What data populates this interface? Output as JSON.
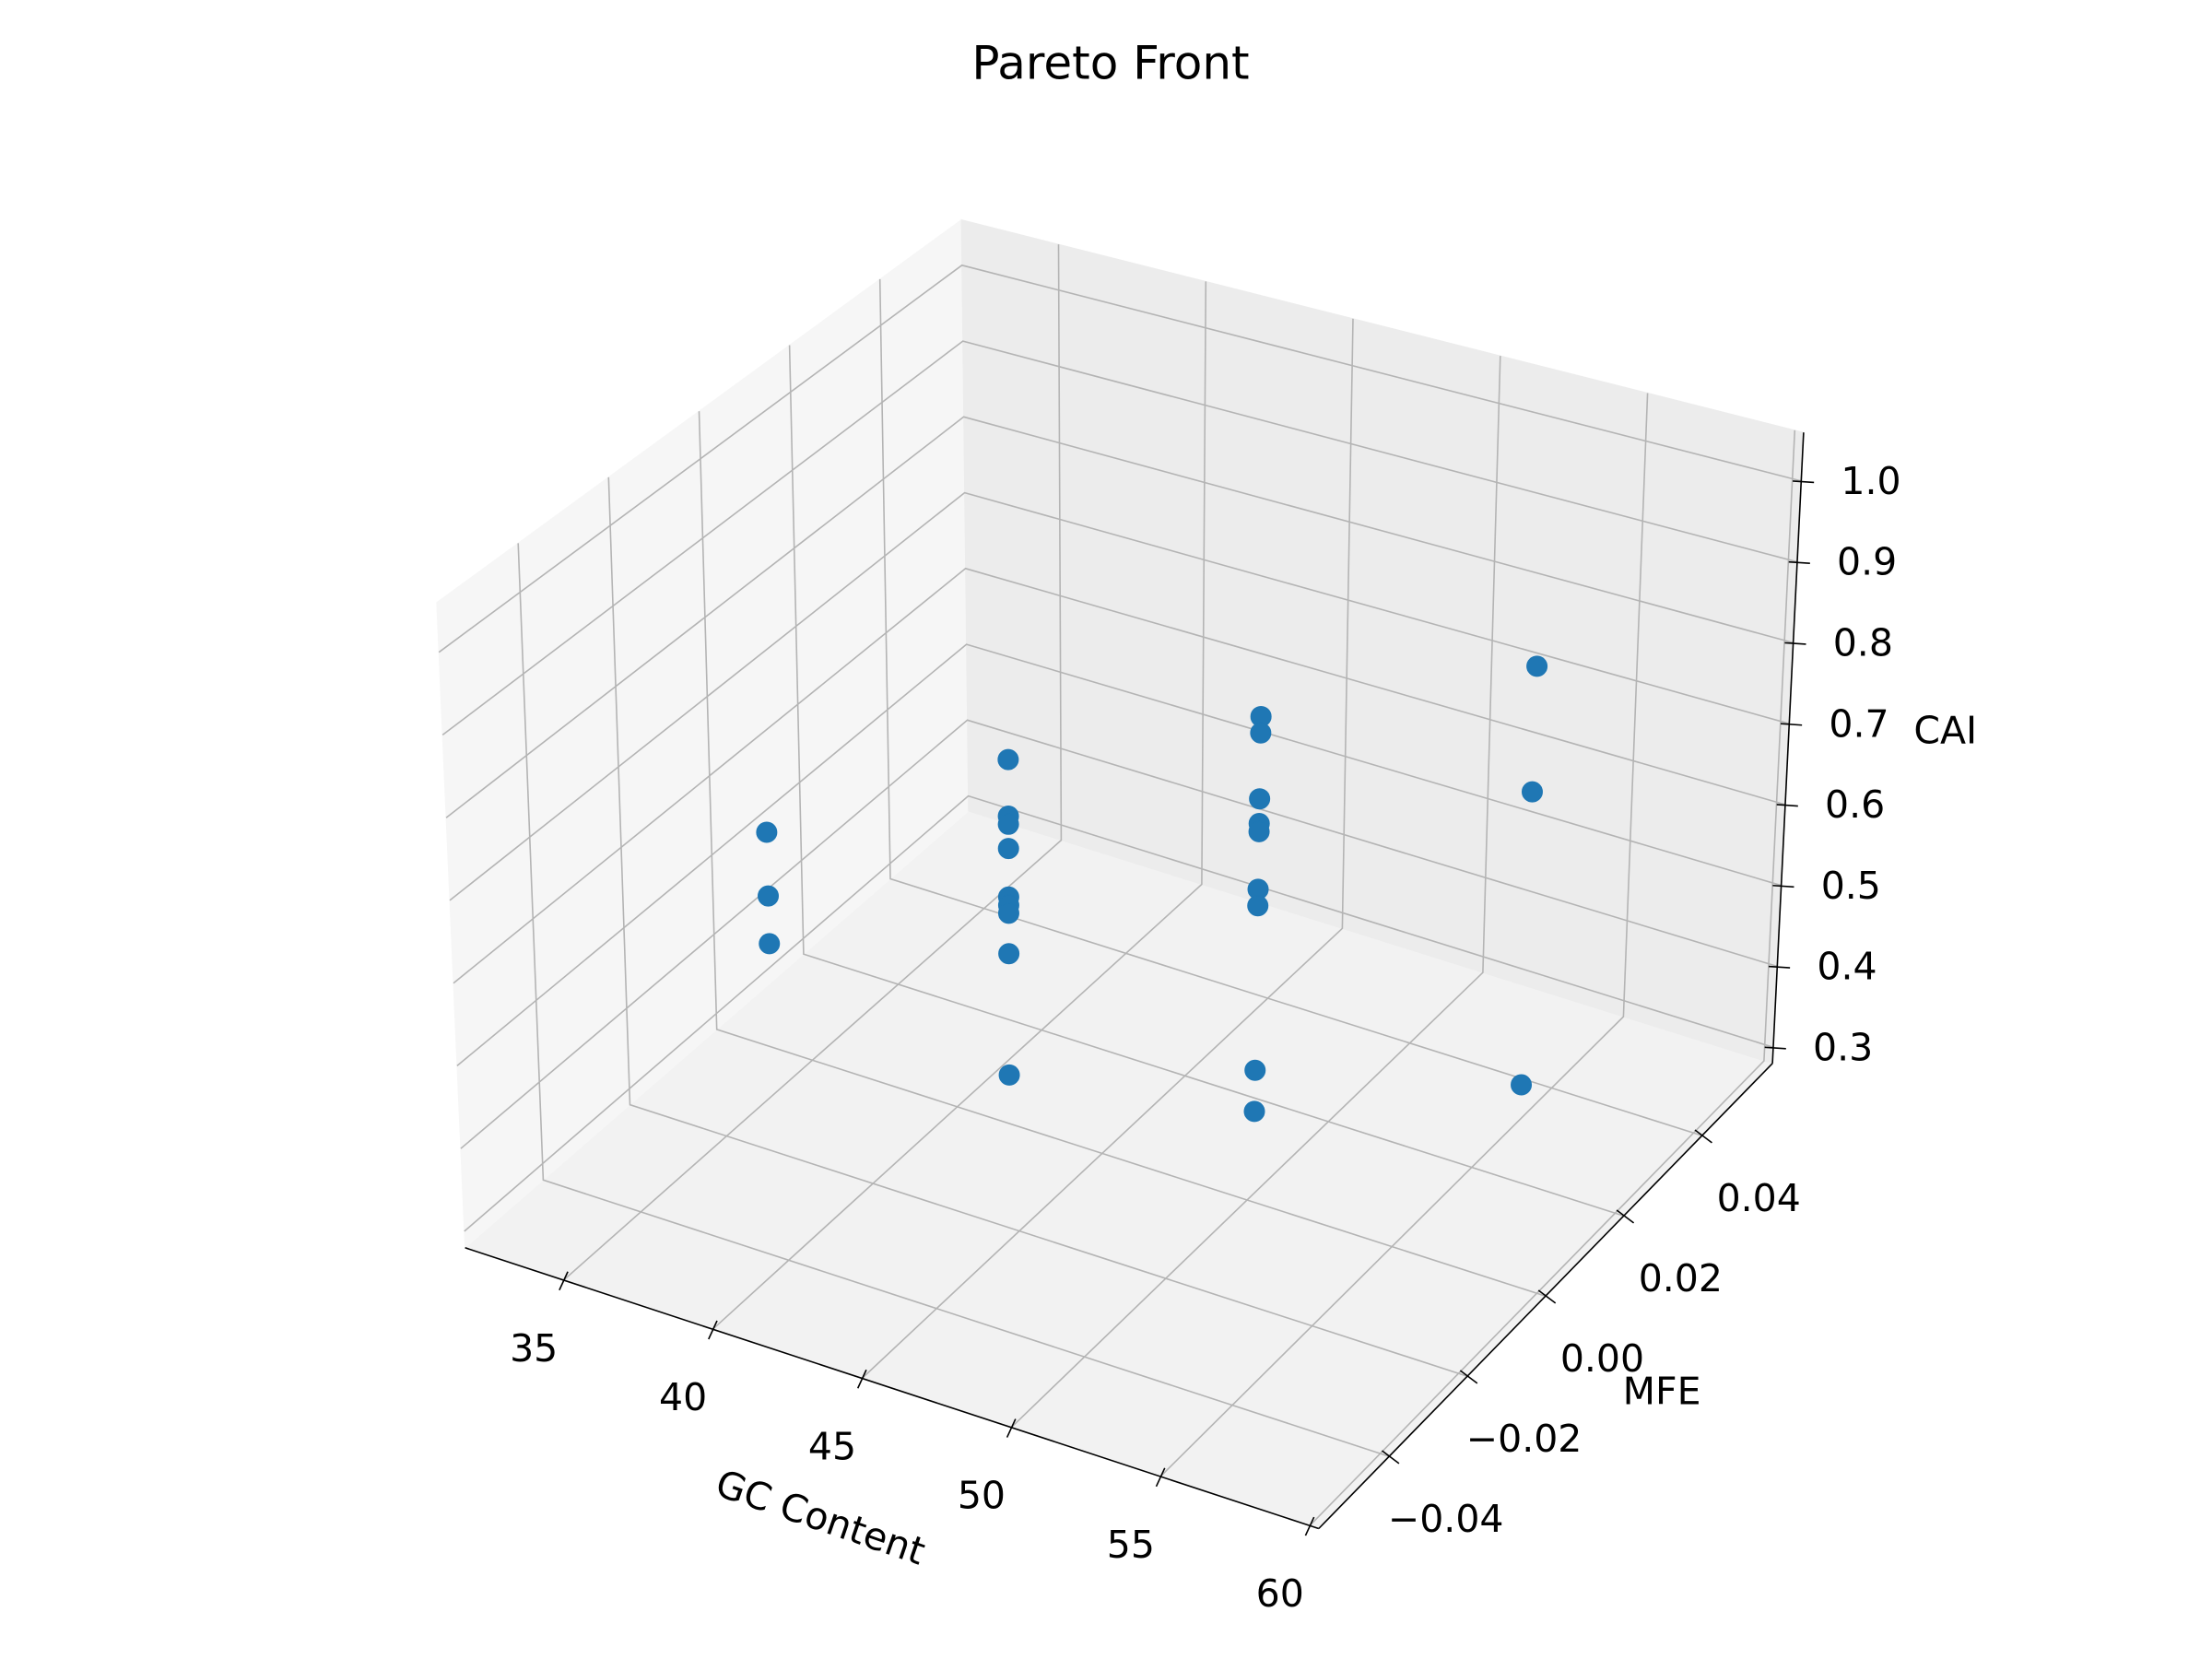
{
  "chart_data": {
    "type": "scatter3d",
    "title": "Pareto Front",
    "x_label": "GC Content",
    "y_label": "MFE",
    "z_label": "CAI",
    "x": [
      33.6,
      33.6,
      33.6,
      41.8,
      41.8,
      41.8,
      41.8,
      41.8,
      41.8,
      41.8,
      41.8,
      41.8,
      50.2,
      50.2,
      50.2,
      50.2,
      50.2,
      50.2,
      50.2,
      50.2,
      50.2,
      59.2,
      59.2,
      59.2
    ],
    "y": [
      0,
      0,
      0,
      0,
      0,
      0,
      0,
      0,
      0,
      0,
      0,
      0,
      0,
      0,
      0,
      0,
      0,
      0,
      0,
      0,
      0,
      0,
      0,
      0
    ],
    "z": [
      0.55,
      0.47,
      0.41,
      0.73,
      0.66,
      0.65,
      0.62,
      0.56,
      0.55,
      0.54,
      0.49,
      0.34,
      0.87,
      0.85,
      0.77,
      0.74,
      0.73,
      0.66,
      0.64,
      0.44,
      0.39,
      1.02,
      0.87,
      0.52
    ],
    "color": "#1f77b4",
    "xlim": [
      31.7,
      60.3
    ],
    "ylim": [
      -0.058,
      0.058
    ],
    "zlim": [
      0.28,
      1.06
    ],
    "xticks": [
      35,
      40,
      45,
      50,
      55,
      60
    ],
    "yticks": [
      {
        "value": -0.04,
        "label": "−0.04"
      },
      {
        "value": -0.02,
        "label": "−0.02"
      },
      {
        "value": 0,
        "label": "0.00"
      },
      0.02,
      0.04
    ],
    "zticks": [
      0.3,
      0.4,
      0.5,
      0.6,
      0.7,
      0.8,
      0.9,
      {
        "value": 1,
        "label": "1.0"
      }
    ],
    "grid": true
  }
}
